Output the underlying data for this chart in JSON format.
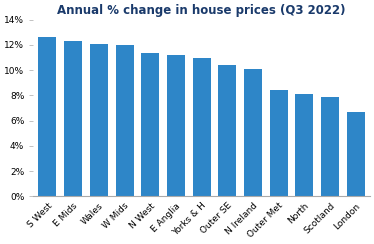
{
  "title": "Annual % change in house prices (Q3 2022)",
  "categories": [
    "S West",
    "E Mids",
    "Wales",
    "W Mids",
    "N West",
    "E Anglia",
    "Yorks & H",
    "Outer SE",
    "N Ireland",
    "Outer Met",
    "North",
    "Scotland",
    "London"
  ],
  "values": [
    12.6,
    12.3,
    12.1,
    12.0,
    11.4,
    11.2,
    11.0,
    10.4,
    10.1,
    8.4,
    8.1,
    7.9,
    6.7
  ],
  "bar_color": "#2e86c8",
  "ylim": [
    0,
    14
  ],
  "yticks": [
    0,
    2,
    4,
    6,
    8,
    10,
    12,
    14
  ],
  "background_color": "#ffffff",
  "title_fontsize": 8.5,
  "tick_fontsize": 6.5,
  "title_color": "#1a3a6b"
}
